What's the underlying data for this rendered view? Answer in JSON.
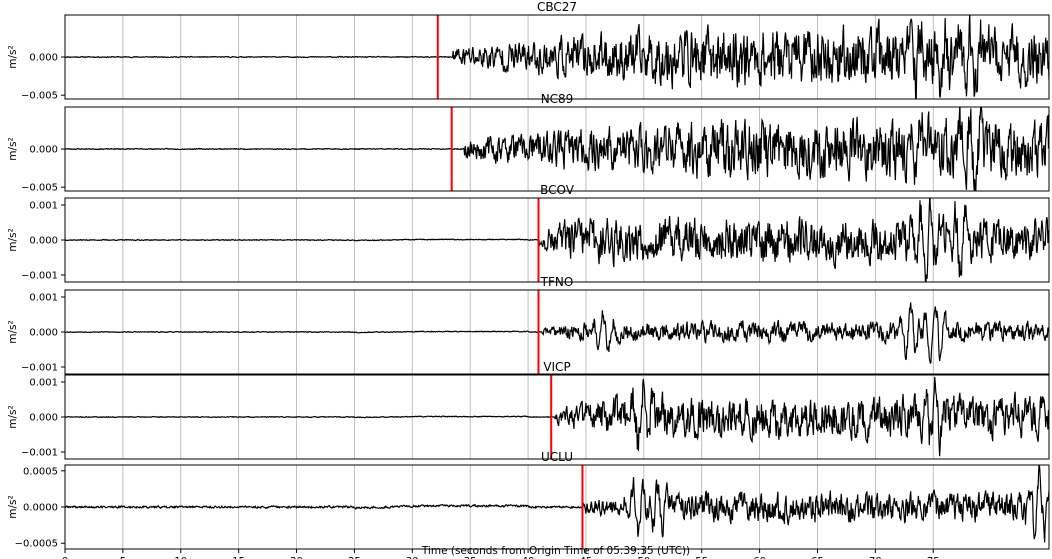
{
  "figure": {
    "xlabel": "Time (seconds from Origin Time of 05:39:35 (UTC))",
    "x_ticks": [
      0,
      5,
      10,
      15,
      20,
      25,
      30,
      35,
      40,
      45,
      50,
      55,
      60,
      65,
      70,
      75
    ],
    "xlim": [
      0,
      85
    ],
    "grid": "vertical",
    "trace_color": "#000000",
    "pick_color": "#ff0000"
  },
  "chart_data": [
    {
      "type": "line",
      "title": "CBC27",
      "ylabel": "m/s²",
      "y_ticks": [
        0.0,
        -0.005
      ],
      "y_tick_labels": [
        "0.000",
        "−0.005"
      ],
      "ylim": [
        -0.0055,
        0.0055
      ],
      "pick_time": 32.2,
      "noise": 5e-05,
      "amp": 0.003,
      "onset": 33.5,
      "ramp": 20,
      "events": [
        [
          74,
          0.004
        ],
        [
          75.8,
          -0.003
        ],
        [
          78,
          0.004
        ]
      ],
      "x": [
        0,
        85
      ],
      "seed": 11
    },
    {
      "type": "line",
      "title": "NC89",
      "ylabel": "m/s²",
      "y_ticks": [
        0.0,
        -0.005
      ],
      "y_tick_labels": [
        "0.000",
        "−0.005"
      ],
      "ylim": [
        -0.0055,
        0.0055
      ],
      "pick_time": 33.4,
      "noise": 5e-05,
      "amp": 0.003,
      "onset": 34.5,
      "ramp": 20,
      "events": [
        [
          74,
          0.004
        ],
        [
          75.8,
          -0.003
        ],
        [
          78,
          0.004
        ]
      ],
      "x": [
        0,
        85
      ],
      "seed": 23
    },
    {
      "type": "line",
      "title": "BCOV",
      "ylabel": "m/s²",
      "y_ticks": [
        0.001,
        0.0,
        -0.001
      ],
      "y_tick_labels": [
        "0.001",
        "0.000",
        "−0.001"
      ],
      "ylim": [
        -0.0012,
        0.0012
      ],
      "pick_time": 40.9,
      "noise": 1e-05,
      "amp": 0.0005,
      "onset": 40.9,
      "ramp": 3,
      "events": [
        [
          74.5,
          0.0009
        ],
        [
          77,
          -0.0007
        ]
      ],
      "x": [
        0,
        85
      ],
      "seed": 37
    },
    {
      "type": "line",
      "title": "TFNO",
      "ylabel": "m/s²",
      "y_ticks": [
        0.001,
        0.0,
        -0.001
      ],
      "y_tick_labels": [
        "0.001",
        "0.000",
        "−0.001"
      ],
      "ylim": [
        -0.0012,
        0.0012
      ],
      "pick_time": 40.9,
      "noise": 1e-05,
      "amp": 0.00022,
      "onset": 41.2,
      "ramp": 4,
      "events": [
        [
          46.5,
          0.0005
        ],
        [
          73,
          0.0008
        ],
        [
          75,
          -0.0009
        ]
      ],
      "x": [
        0,
        85
      ],
      "seed": 53
    },
    {
      "type": "line",
      "title": "VICP",
      "ylabel": "m/s²",
      "y_ticks": [
        0.001,
        0.0,
        -0.001
      ],
      "y_tick_labels": [
        "0.001",
        "0.000",
        "−0.001"
      ],
      "ylim": [
        -0.0012,
        0.0012
      ],
      "pick_time": 42.0,
      "noise": 1e-05,
      "amp": 0.00045,
      "onset": 42.3,
      "ramp": 5,
      "events": [
        [
          50,
          0.0008
        ],
        [
          75,
          -0.0007
        ]
      ],
      "x": [
        0,
        85
      ],
      "seed": 71
    },
    {
      "type": "line",
      "title": "UCLU",
      "ylabel": "m/s²",
      "y_ticks": [
        0.0005,
        0.0,
        -0.0005
      ],
      "y_tick_labels": [
        "0.0005",
        "0.0000",
        "−0.0005"
      ],
      "ylim": [
        -0.00058,
        0.00058
      ],
      "pick_time": 44.7,
      "noise": 1.2e-05,
      "amp": 0.00015,
      "onset": 44.8,
      "ramp": 6,
      "events": [
        [
          49.5,
          0.0004
        ],
        [
          51,
          -0.0004
        ],
        [
          84,
          0.0004
        ]
      ],
      "x": [
        0,
        85
      ],
      "seed": 89
    }
  ]
}
